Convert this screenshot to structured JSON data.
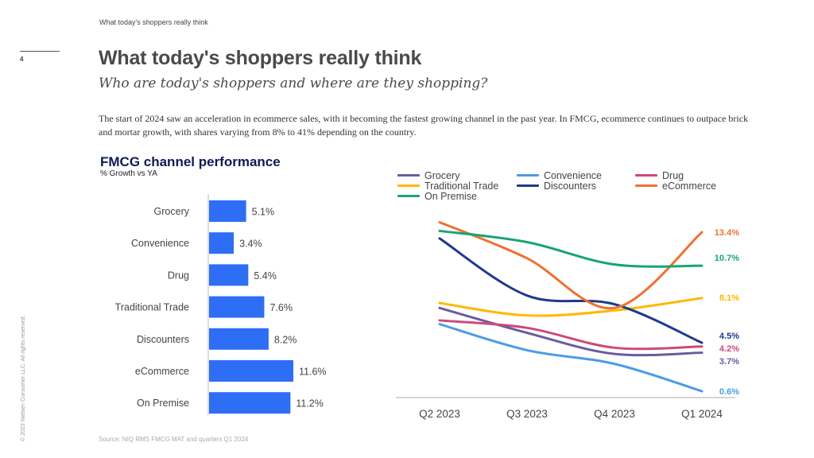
{
  "header": {
    "kicker": "What today's shoppers really think",
    "page_number": "4",
    "title": "What today's shoppers really think",
    "subtitle": "Who are today's shoppers and where are they shopping?",
    "body": "The start of 2024 saw an acceleration in ecommerce sales, with it becoming the fastest growing channel in the past year. In FMCG, ecommerce continues to outpace brick and mortar growth, with shares varying from 8% to 41% depending on the country."
  },
  "chart_title": "FMCG channel performance",
  "chart_subtitle": "% Growth vs YA",
  "footer": {
    "copyright": "© 2023 Nielsen Consumer LLC. All rights reserved.",
    "source": "Source: NIQ RMS FMCG MAT and quarters Q1 2024"
  },
  "chart_data": [
    {
      "type": "bar",
      "orientation": "horizontal",
      "title": "FMCG channel performance",
      "subtitle": "% Growth vs YA",
      "categories": [
        "Grocery",
        "Convenience",
        "Drug",
        "Traditional Trade",
        "Discounters",
        "eCommerce",
        "On Premise"
      ],
      "values": [
        5.1,
        3.4,
        5.4,
        7.6,
        8.2,
        11.6,
        11.2
      ],
      "labels": [
        "5.1%",
        "3.4%",
        "5.4%",
        "7.6%",
        "8.2%",
        "11.6%",
        "11.2%"
      ],
      "color": "#2d6ef5",
      "xlim": [
        0,
        12
      ]
    },
    {
      "type": "line",
      "x": [
        "Q2 2023",
        "Q3 2023",
        "Q4 2023",
        "Q1 2024"
      ],
      "ylim": [
        0.6,
        14.2
      ],
      "legend_position": "top",
      "series": [
        {
          "name": "Grocery",
          "color": "#6b5b9e",
          "values": [
            7.3,
            5.3,
            3.6,
            3.7
          ],
          "end_label": "3.7%"
        },
        {
          "name": "Convenience",
          "color": "#4a9ce8",
          "values": [
            6.0,
            3.9,
            2.8,
            0.6
          ],
          "end_label": "0.6%"
        },
        {
          "name": "Drug",
          "color": "#cc4a7a",
          "values": [
            6.3,
            5.7,
            4.1,
            4.2
          ],
          "end_label": "4.2%"
        },
        {
          "name": "Traditional Trade",
          "color": "#ffb800",
          "values": [
            7.7,
            6.7,
            7.1,
            8.1
          ],
          "end_label": "8.1%"
        },
        {
          "name": "Discounters",
          "color": "#1f3a8a",
          "values": [
            12.9,
            8.3,
            7.6,
            4.5
          ],
          "end_label": "4.5%"
        },
        {
          "name": "eCommerce",
          "color": "#f07030",
          "values": [
            14.2,
            11.3,
            7.3,
            13.4
          ],
          "end_label": "13.4%"
        },
        {
          "name": "On Premise",
          "color": "#17a574",
          "values": [
            13.5,
            12.6,
            10.8,
            10.7
          ],
          "end_label": "10.7%"
        }
      ]
    }
  ]
}
